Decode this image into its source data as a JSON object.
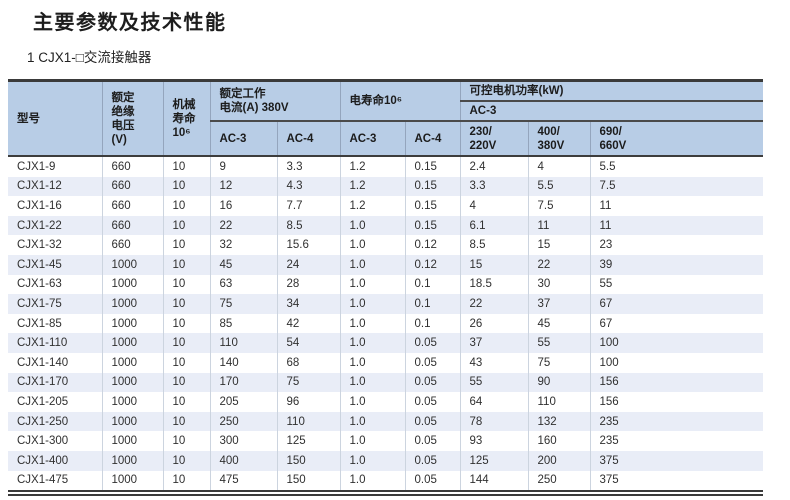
{
  "page": {
    "title": "主要参数及技术性能",
    "subtitle": "1 CJX1-□交流接触器"
  },
  "colors": {
    "header_bg": "#b8cde6",
    "row_stripe_bg": "#e9edf7",
    "table_border_dark": "#3a3a3a",
    "header_separator": "#4a4a4a",
    "cell_separator": "#ccd4df"
  },
  "table": {
    "headers": {
      "model": "型号",
      "insulation_voltage": "额定\n绝缘\n电压\n(V)",
      "mechanical_life": "机械\n寿命\n10⁶",
      "rated_current_group": "额定工作\n电流(A) 380V",
      "electrical_life_group": "电寿命10⁶",
      "motor_power_group": "可控电机功率(kW)",
      "motor_power_subgroup": "AC-3",
      "rated_current_ac3": "AC-3",
      "rated_current_ac4": "AC-4",
      "electrical_life_ac3": "AC-3",
      "electrical_life_ac4": "AC-4",
      "power_230_220": "230/\n220V",
      "power_400_380": "400/\n380V",
      "power_690_660": "690/\n660V"
    },
    "rows": [
      [
        "CJX1-9",
        "660",
        "10",
        "9",
        "3.3",
        "1.2",
        "0.15",
        "2.4",
        "4",
        "5.5"
      ],
      [
        "CJX1-12",
        "660",
        "10",
        "12",
        "4.3",
        "1.2",
        "0.15",
        "3.3",
        "5.5",
        "7.5"
      ],
      [
        "CJX1-16",
        "660",
        "10",
        "16",
        "7.7",
        "1.2",
        "0.15",
        "4",
        "7.5",
        "11"
      ],
      [
        "CJX1-22",
        "660",
        "10",
        "22",
        "8.5",
        "1.0",
        "0.15",
        "6.1",
        "11",
        "11"
      ],
      [
        "CJX1-32",
        "660",
        "10",
        "32",
        "15.6",
        "1.0",
        "0.12",
        "8.5",
        "15",
        "23"
      ],
      [
        "CJX1-45",
        "1000",
        "10",
        "45",
        "24",
        "1.0",
        "0.12",
        "15",
        "22",
        "39"
      ],
      [
        "CJX1-63",
        "1000",
        "10",
        "63",
        "28",
        "1.0",
        "0.1",
        "18.5",
        "30",
        "55"
      ],
      [
        "CJX1-75",
        "1000",
        "10",
        "75",
        "34",
        "1.0",
        "0.1",
        "22",
        "37",
        "67"
      ],
      [
        "CJX1-85",
        "1000",
        "10",
        "85",
        "42",
        "1.0",
        "0.1",
        "26",
        "45",
        "67"
      ],
      [
        "CJX1-110",
        "1000",
        "10",
        "110",
        "54",
        "1.0",
        "0.05",
        "37",
        "55",
        "100"
      ],
      [
        "CJX1-140",
        "1000",
        "10",
        "140",
        "68",
        "1.0",
        "0.05",
        "43",
        "75",
        "100"
      ],
      [
        "CJX1-170",
        "1000",
        "10",
        "170",
        "75",
        "1.0",
        "0.05",
        "55",
        "90",
        "156"
      ],
      [
        "CJX1-205",
        "1000",
        "10",
        "205",
        "96",
        "1.0",
        "0.05",
        "64",
        "110",
        "156"
      ],
      [
        "CJX1-250",
        "1000",
        "10",
        "250",
        "110",
        "1.0",
        "0.05",
        "78",
        "132",
        "235"
      ],
      [
        "CJX1-300",
        "1000",
        "10",
        "300",
        "125",
        "1.0",
        "0.05",
        "93",
        "160",
        "235"
      ],
      [
        "CJX1-400",
        "1000",
        "10",
        "400",
        "150",
        "1.0",
        "0.05",
        "125",
        "200",
        "375"
      ],
      [
        "CJX1-475",
        "1000",
        "10",
        "475",
        "150",
        "1.0",
        "0.05",
        "144",
        "250",
        "375"
      ]
    ]
  }
}
